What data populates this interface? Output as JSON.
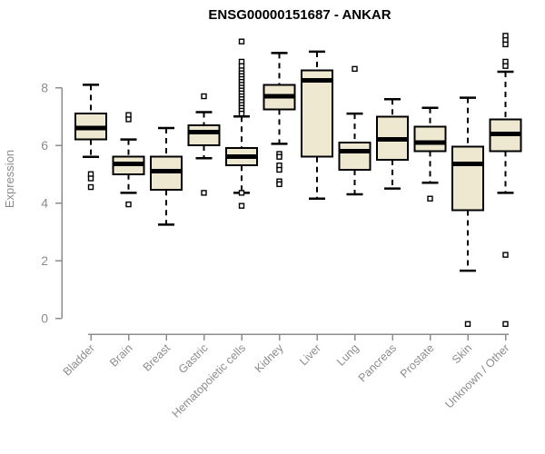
{
  "chart_data": {
    "type": "box",
    "title": "ENSG00000151687 - ANKAR",
    "ylabel": "Expression",
    "xlabel": "",
    "yticks": [
      0,
      2,
      4,
      6,
      8
    ],
    "ylim": [
      -0.5,
      10
    ],
    "grid": false,
    "legend": "none",
    "categories": [
      "Bladder",
      "Brain",
      "Breast",
      "Gastric",
      "Hematopoietic cells",
      "Kidney",
      "Liver",
      "Lung",
      "Pancreas",
      "Prostate",
      "Skin",
      "Unknown / Other"
    ],
    "series": [
      {
        "category": "Bladder",
        "whisker_low": 5.6,
        "q1": 6.2,
        "median": 6.6,
        "q3": 7.1,
        "whisker_high": 8.1,
        "outliers": [
          5.0,
          4.85,
          4.55
        ]
      },
      {
        "category": "Brain",
        "whisker_low": 4.35,
        "q1": 5.0,
        "median": 5.35,
        "q3": 5.6,
        "whisker_high": 6.2,
        "outliers": [
          7.05,
          6.9,
          3.95
        ]
      },
      {
        "category": "Breast",
        "whisker_low": 3.25,
        "q1": 4.45,
        "median": 5.1,
        "q3": 5.6,
        "whisker_high": 6.6,
        "outliers": []
      },
      {
        "category": "Gastric",
        "whisker_low": 5.55,
        "q1": 6.0,
        "median": 6.45,
        "q3": 6.7,
        "whisker_high": 7.15,
        "outliers": [
          7.7,
          4.35
        ]
      },
      {
        "category": "Hematopoietic cells",
        "whisker_low": 4.35,
        "q1": 5.3,
        "median": 5.6,
        "q3": 5.9,
        "whisker_high": 7.0,
        "outliers": [
          9.6,
          8.9,
          8.75,
          8.6,
          8.5,
          8.4,
          8.3,
          8.2,
          8.1,
          8.0,
          7.9,
          7.8,
          7.7,
          7.6,
          7.5,
          7.4,
          7.3,
          7.2,
          7.1,
          4.35,
          3.9
        ]
      },
      {
        "category": "Kidney",
        "whisker_low": 6.05,
        "q1": 7.25,
        "median": 7.7,
        "q3": 8.1,
        "whisker_high": 9.2,
        "outliers": [
          5.7,
          5.6,
          5.3,
          5.15,
          4.75,
          4.65
        ]
      },
      {
        "category": "Liver",
        "whisker_low": 4.15,
        "q1": 5.6,
        "median": 8.25,
        "q3": 8.6,
        "whisker_high": 9.25,
        "outliers": []
      },
      {
        "category": "Lung",
        "whisker_low": 4.3,
        "q1": 5.15,
        "median": 5.8,
        "q3": 6.1,
        "whisker_high": 7.1,
        "outliers": [
          8.65
        ]
      },
      {
        "category": "Pancreas",
        "whisker_low": 4.5,
        "q1": 5.5,
        "median": 6.2,
        "q3": 7.0,
        "whisker_high": 7.6,
        "outliers": []
      },
      {
        "category": "Prostate",
        "whisker_low": 4.7,
        "q1": 5.8,
        "median": 6.1,
        "q3": 6.65,
        "whisker_high": 7.3,
        "outliers": [
          4.15
        ]
      },
      {
        "category": "Skin",
        "whisker_low": 1.65,
        "q1": 3.75,
        "median": 5.35,
        "q3": 5.95,
        "whisker_high": 7.65,
        "outliers": [
          -0.2
        ]
      },
      {
        "category": "Unknown / Other",
        "whisker_low": 4.35,
        "q1": 5.8,
        "median": 6.4,
        "q3": 6.9,
        "whisker_high": 8.55,
        "outliers": [
          9.8,
          9.65,
          9.5,
          8.9,
          8.75,
          2.2,
          -0.2
        ]
      }
    ],
    "style": {
      "box_fill": "#EDE8CF",
      "box_border": "#000000",
      "median_color": "#000000",
      "whisker_color": "#000000",
      "outlier_color": "#000000",
      "axis_color": "#8C8C8C",
      "title_color": "#000000",
      "background": "#FFFFFF"
    }
  }
}
